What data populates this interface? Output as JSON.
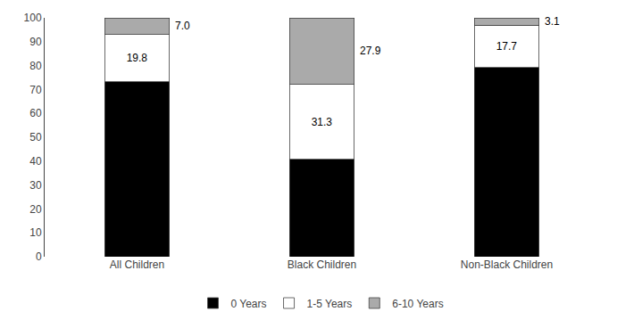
{
  "chart_data": {
    "type": "bar",
    "stacked": true,
    "categories": [
      "All Children",
      "Black Children",
      "Non-Black Children"
    ],
    "series": [
      {
        "name": "0 Years",
        "color": "#000000",
        "values": [
          73.2,
          40.8,
          79.2
        ]
      },
      {
        "name": "1-5 Years",
        "color": "#ffffff",
        "values": [
          19.8,
          31.3,
          17.7
        ],
        "data_labels": true,
        "value_labels": [
          "19.8",
          "31.3",
          "17.7"
        ]
      },
      {
        "name": "6-10 Years",
        "color": "#aaaaaa",
        "values": [
          7.0,
          27.9,
          3.1
        ],
        "data_labels": true,
        "value_labels": [
          "7.0",
          "27.9",
          "3.1"
        ]
      }
    ],
    "ylim": [
      0,
      100
    ],
    "yticks": [
      0,
      10,
      20,
      30,
      40,
      50,
      60,
      70,
      80,
      90,
      100
    ],
    "grid": false,
    "legend": "bottom"
  }
}
